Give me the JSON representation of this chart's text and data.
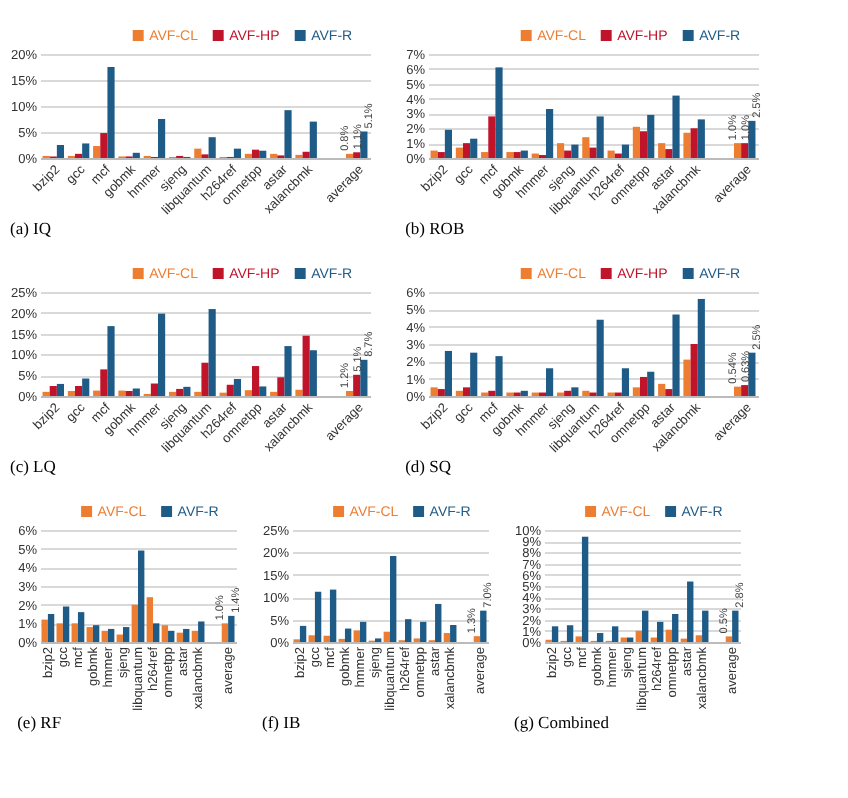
{
  "chart_data": [
    {
      "type": "bar",
      "title": "(a) IQ",
      "categories": [
        "bzip2",
        "gcc",
        "mcf",
        "gobmk",
        "hmmer",
        "sjeng",
        "libquantum",
        "h264ref",
        "omnetpp",
        "astar",
        "xalancbmk",
        null,
        "average"
      ],
      "ylim": [
        0,
        20
      ],
      "yticks": [
        {
          "value": 0,
          "label": "0%"
        },
        {
          "value": 5,
          "label": "5%"
        },
        {
          "value": 10,
          "label": "10%"
        },
        {
          "value": 15,
          "label": "15%"
        },
        {
          "value": 20,
          "label": "20%"
        }
      ],
      "grid": "y",
      "legend": "top right",
      "series": [
        {
          "name": "AVF-CL",
          "color": "#ed7d31",
          "values": [
            0.4,
            0.4,
            2.3,
            0.3,
            0.4,
            0.2,
            1.8,
            0.2,
            0.8,
            0.8,
            0.6,
            null,
            0.8
          ],
          "value_labels": [
            null,
            null,
            null,
            null,
            null,
            null,
            null,
            null,
            null,
            null,
            null,
            null,
            "0.8%"
          ]
        },
        {
          "name": "AVF-HP",
          "color": "#c0142b",
          "values": [
            0.3,
            0.8,
            4.8,
            0.3,
            0.2,
            0.4,
            0.7,
            0.2,
            1.6,
            0.5,
            1.2,
            null,
            1.1
          ],
          "value_labels": [
            null,
            null,
            null,
            null,
            null,
            null,
            null,
            null,
            null,
            null,
            null,
            null,
            "1.1%"
          ]
        },
        {
          "name": "AVF-R",
          "color": "#1f5b87",
          "values": [
            2.5,
            2.8,
            17.5,
            1.0,
            7.5,
            0.2,
            4.0,
            1.8,
            1.4,
            9.2,
            7.0,
            null,
            5.1
          ],
          "value_labels": [
            null,
            null,
            null,
            null,
            null,
            null,
            null,
            null,
            null,
            null,
            null,
            null,
            "5.1%"
          ]
        }
      ]
    },
    {
      "type": "bar",
      "title": "(b) ROB",
      "categories": [
        "bzip2",
        "gcc",
        "mcf",
        "gobmk",
        "hmmer",
        "sjeng",
        "libquantum",
        "h264ref",
        "omnetpp",
        "astar",
        "xalancbmk",
        null,
        "average"
      ],
      "ylim": [
        0,
        7
      ],
      "yticks": [
        {
          "value": 0,
          "label": "0%"
        },
        {
          "value": 1,
          "label": "1%"
        },
        {
          "value": 2,
          "label": "2%"
        },
        {
          "value": 3,
          "label": "3%"
        },
        {
          "value": 4,
          "label": "4%"
        },
        {
          "value": 5,
          "label": "5%"
        },
        {
          "value": 6,
          "label": "6%"
        },
        {
          "value": 7,
          "label": "7%"
        }
      ],
      "grid": "y",
      "legend": "top right",
      "series": [
        {
          "name": "AVF-CL",
          "color": "#ed7d31",
          "values": [
            0.5,
            0.7,
            0.4,
            0.4,
            0.3,
            1.0,
            1.4,
            0.5,
            2.1,
            1.0,
            1.7,
            null,
            1.0
          ],
          "value_labels": [
            null,
            null,
            null,
            null,
            null,
            null,
            null,
            null,
            null,
            null,
            null,
            null,
            "1.0%"
          ]
        },
        {
          "name": "AVF-HP",
          "color": "#c0142b",
          "values": [
            0.4,
            1.0,
            2.8,
            0.4,
            0.2,
            0.5,
            0.7,
            0.3,
            1.8,
            0.6,
            2.0,
            null,
            1.0
          ],
          "value_labels": [
            null,
            null,
            null,
            null,
            null,
            null,
            null,
            null,
            null,
            null,
            null,
            null,
            "1.0%"
          ]
        },
        {
          "name": "AVF-R",
          "color": "#1f5b87",
          "values": [
            1.9,
            1.3,
            6.1,
            0.5,
            3.3,
            0.9,
            2.8,
            0.9,
            2.9,
            4.2,
            2.6,
            null,
            2.5
          ],
          "value_labels": [
            null,
            null,
            null,
            null,
            null,
            null,
            null,
            null,
            null,
            null,
            null,
            null,
            "2.5%"
          ]
        }
      ]
    },
    {
      "type": "bar",
      "title": "(c) LQ",
      "categories": [
        "bzip2",
        "gcc",
        "mcf",
        "gobmk",
        "hmmer",
        "sjeng",
        "libquantum",
        "h264ref",
        "omnetpp",
        "astar",
        "xalancbmk",
        null,
        "average"
      ],
      "ylim": [
        0,
        25
      ],
      "yticks": [
        {
          "value": 0,
          "label": "0%"
        },
        {
          "value": 5,
          "label": "5%"
        },
        {
          "value": 10,
          "label": "10%"
        },
        {
          "value": 15,
          "label": "15%"
        },
        {
          "value": 20,
          "label": "20%"
        },
        {
          "value": 25,
          "label": "25%"
        }
      ],
      "grid": "y",
      "legend": "top right",
      "series": [
        {
          "name": "AVF-CL",
          "color": "#ed7d31",
          "values": [
            1.0,
            1.2,
            1.3,
            1.3,
            0.5,
            1.0,
            1.0,
            0.8,
            1.4,
            1.0,
            1.5,
            null,
            1.2
          ],
          "value_labels": [
            null,
            null,
            null,
            null,
            null,
            null,
            null,
            null,
            null,
            null,
            null,
            null,
            "1.2%"
          ]
        },
        {
          "name": "AVF-HP",
          "color": "#c0142b",
          "values": [
            2.4,
            2.4,
            6.4,
            1.2,
            3.0,
            1.7,
            8.0,
            2.7,
            7.2,
            4.5,
            14.5,
            null,
            5.1
          ],
          "value_labels": [
            null,
            null,
            null,
            null,
            null,
            null,
            null,
            null,
            null,
            null,
            null,
            null,
            "5.1%"
          ]
        },
        {
          "name": "AVF-R",
          "color": "#1f5b87",
          "values": [
            2.9,
            4.2,
            16.8,
            1.8,
            19.8,
            2.2,
            20.9,
            4.1,
            2.3,
            12.0,
            11.0,
            null,
            8.7
          ],
          "value_labels": [
            null,
            null,
            null,
            null,
            null,
            null,
            null,
            null,
            null,
            null,
            null,
            null,
            "8.7%"
          ]
        }
      ]
    },
    {
      "type": "bar",
      "title": "(d) SQ",
      "categories": [
        "bzip2",
        "gcc",
        "mcf",
        "gobmk",
        "hmmer",
        "sjeng",
        "libquantum",
        "h264ref",
        "omnetpp",
        "astar",
        "xalancbmk",
        null,
        "average"
      ],
      "ylim": [
        0,
        6
      ],
      "yticks": [
        {
          "value": 0,
          "label": "0%"
        },
        {
          "value": 1,
          "label": "1%"
        },
        {
          "value": 2,
          "label": "2%"
        },
        {
          "value": 3,
          "label": "3%"
        },
        {
          "value": 4,
          "label": "4%"
        },
        {
          "value": 5,
          "label": "5%"
        },
        {
          "value": 6,
          "label": "6%"
        }
      ],
      "grid": "y",
      "legend": "top right",
      "series": [
        {
          "name": "AVF-CL",
          "color": "#ed7d31",
          "values": [
            0.5,
            0.3,
            0.2,
            0.2,
            0.2,
            0.2,
            0.3,
            0.2,
            0.5,
            0.7,
            2.1,
            null,
            0.54
          ],
          "value_labels": [
            null,
            null,
            null,
            null,
            null,
            null,
            null,
            null,
            null,
            null,
            null,
            null,
            "0.54%"
          ]
        },
        {
          "name": "AVF-HP",
          "color": "#c0142b",
          "values": [
            0.4,
            0.5,
            0.3,
            0.2,
            0.2,
            0.3,
            0.2,
            0.2,
            1.1,
            0.4,
            3.0,
            null,
            0.63
          ],
          "value_labels": [
            null,
            null,
            null,
            null,
            null,
            null,
            null,
            null,
            null,
            null,
            null,
            null,
            "0.63%"
          ]
        },
        {
          "name": "AVF-R",
          "color": "#1f5b87",
          "values": [
            2.6,
            2.5,
            2.3,
            0.3,
            1.6,
            0.5,
            4.4,
            1.6,
            1.4,
            4.7,
            5.6,
            null,
            2.5
          ],
          "value_labels": [
            null,
            null,
            null,
            null,
            null,
            null,
            null,
            null,
            null,
            null,
            null,
            null,
            "2.5%"
          ]
        }
      ]
    },
    {
      "type": "bar",
      "title": "(e) RF",
      "categories": [
        "bzip2",
        "gcc",
        "mcf",
        "gobmk",
        "hmmer",
        "sjeng",
        "libquantum",
        "h264ref",
        "omnetpp",
        "astar",
        "xalancbmk",
        null,
        "average"
      ],
      "ylim": [
        0,
        6
      ],
      "yticks": [
        {
          "value": 0,
          "label": "0%"
        },
        {
          "value": 1,
          "label": "1%"
        },
        {
          "value": 2,
          "label": "2%"
        },
        {
          "value": 3,
          "label": "3%"
        },
        {
          "value": 4,
          "label": "4%"
        },
        {
          "value": 5,
          "label": "5%"
        },
        {
          "value": 6,
          "label": "6%"
        }
      ],
      "grid": "y",
      "legend": "top right",
      "series": [
        {
          "name": "AVF-CL",
          "color": "#ed7d31",
          "values": [
            1.2,
            1.0,
            1.0,
            0.8,
            0.6,
            0.4,
            2.0,
            2.4,
            0.9,
            0.5,
            0.6,
            null,
            1.0
          ],
          "value_labels": [
            null,
            null,
            null,
            null,
            null,
            null,
            null,
            null,
            null,
            null,
            null,
            null,
            "1.0%"
          ]
        },
        {
          "name": "AVF-R",
          "color": "#1f5b87",
          "values": [
            1.5,
            1.9,
            1.6,
            0.9,
            0.7,
            0.8,
            4.9,
            1.0,
            0.6,
            0.7,
            1.1,
            null,
            1.4
          ],
          "value_labels": [
            null,
            null,
            null,
            null,
            null,
            null,
            null,
            null,
            null,
            null,
            null,
            null,
            "1.4%"
          ]
        }
      ]
    },
    {
      "type": "bar",
      "title": "(f) IB",
      "categories": [
        "bzip2",
        "gcc",
        "mcf",
        "gobmk",
        "hmmer",
        "sjeng",
        "libquantum",
        "h264ref",
        "omnetpp",
        "astar",
        "xalancbmk",
        null,
        "average"
      ],
      "ylim": [
        0,
        25
      ],
      "yticks": [
        {
          "value": 0,
          "label": "0%"
        },
        {
          "value": 5,
          "label": "5%"
        },
        {
          "value": 10,
          "label": "10%"
        },
        {
          "value": 15,
          "label": "15%"
        },
        {
          "value": 20,
          "label": "20%"
        },
        {
          "value": 25,
          "label": "25%"
        }
      ],
      "grid": "y",
      "legend": "top right",
      "series": [
        {
          "name": "AVF-CL",
          "color": "#ed7d31",
          "values": [
            0.6,
            1.5,
            1.4,
            0.7,
            2.6,
            0.3,
            2.3,
            0.4,
            0.8,
            0.4,
            2.0,
            null,
            1.3
          ],
          "value_labels": [
            null,
            null,
            null,
            null,
            null,
            null,
            null,
            null,
            null,
            null,
            null,
            null,
            "1.3%"
          ]
        },
        {
          "name": "AVF-R",
          "color": "#1f5b87",
          "values": [
            3.6,
            11.2,
            11.7,
            3.0,
            4.5,
            0.8,
            19.2,
            5.1,
            4.5,
            8.5,
            3.8,
            null,
            7.0
          ],
          "value_labels": [
            null,
            null,
            null,
            null,
            null,
            null,
            null,
            null,
            null,
            null,
            null,
            null,
            "7.0%"
          ]
        }
      ]
    },
    {
      "type": "bar",
      "title": "(g) Combined",
      "categories": [
        "bzip2",
        "gcc",
        "mcf",
        "gobmk",
        "hmmer",
        "sjeng",
        "libquantum",
        "h264ref",
        "omnetpp",
        "astar",
        "xalancbmk",
        null,
        "average"
      ],
      "ylim": [
        0,
        10
      ],
      "yticks": [
        {
          "value": 0,
          "label": "0%"
        },
        {
          "value": 1,
          "label": "1%"
        },
        {
          "value": 2,
          "label": "2%"
        },
        {
          "value": 3,
          "label": "3%"
        },
        {
          "value": 4,
          "label": "4%"
        },
        {
          "value": 5,
          "label": "5%"
        },
        {
          "value": 6,
          "label": "6%"
        },
        {
          "value": 7,
          "label": "7%"
        },
        {
          "value": 8,
          "label": "8%"
        },
        {
          "value": 9,
          "label": "9%"
        },
        {
          "value": 10,
          "label": "10%"
        }
      ],
      "grid": "y",
      "legend": "top right",
      "series": [
        {
          "name": "AVF-CL",
          "color": "#ed7d31",
          "values": [
            0.2,
            0.1,
            0.5,
            0.1,
            0.1,
            0.4,
            1.0,
            0.4,
            1.1,
            0.3,
            0.6,
            null,
            0.5
          ],
          "value_labels": [
            null,
            null,
            null,
            null,
            null,
            null,
            null,
            null,
            null,
            null,
            null,
            null,
            "0.5%"
          ]
        },
        {
          "name": "AVF-R",
          "color": "#1f5b87",
          "values": [
            1.4,
            1.5,
            9.4,
            0.8,
            1.4,
            0.4,
            2.8,
            1.8,
            2.5,
            5.4,
            2.8,
            null,
            2.8
          ],
          "value_labels": [
            null,
            null,
            null,
            null,
            null,
            null,
            null,
            null,
            null,
            null,
            null,
            null,
            "2.8%"
          ]
        }
      ]
    }
  ]
}
